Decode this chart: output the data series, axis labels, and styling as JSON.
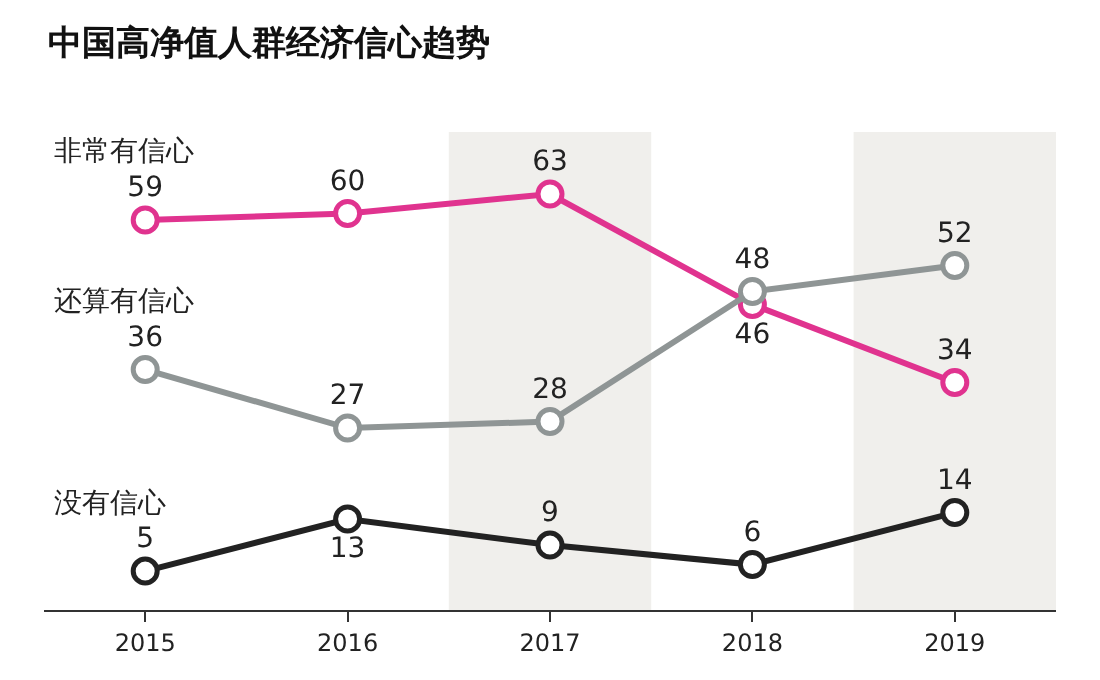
{
  "chart_data": {
    "type": "line",
    "title": "中国高净值人群经济信心趋势",
    "x": [
      2015,
      2016,
      2017,
      2018,
      2019
    ],
    "xlim": [
      2014.5,
      2019.5
    ],
    "xticks": [
      2015,
      2016,
      2017,
      2018,
      2019
    ],
    "series": [
      {
        "name": "非常有信心",
        "color": "#e0338f",
        "values": [
          59,
          60,
          63,
          46,
          34
        ]
      },
      {
        "name": "还算有信心",
        "color": "#8f9595",
        "values": [
          36,
          27,
          28,
          48,
          52
        ]
      },
      {
        "name": "没有信心",
        "color": "#222222",
        "values": [
          5,
          13,
          9,
          6,
          14
        ]
      }
    ],
    "bands": [
      {
        "axis": "x",
        "from": 2016.5,
        "to": 2017.5,
        "color": "#f0efec"
      },
      {
        "axis": "x",
        "from": 2018.5,
        "to": 2019.5,
        "color": "#f0efec"
      }
    ],
    "data_labels": true,
    "marker": "circle",
    "line_style": "solid",
    "grid": false,
    "legend": false,
    "tick_labels": "x"
  }
}
